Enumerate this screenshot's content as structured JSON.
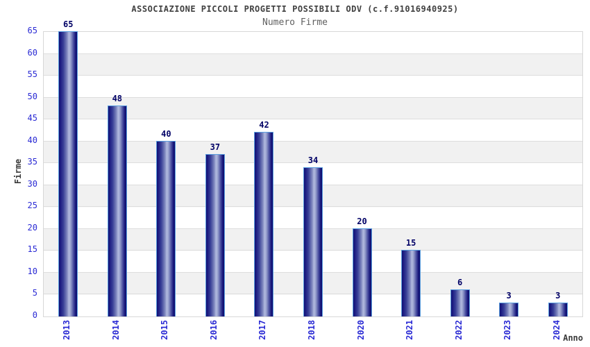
{
  "chart_data": {
    "type": "bar",
    "title": "ASSOCIAZIONE PICCOLI PROGETTI POSSIBILI ODV (c.f.91016940925)",
    "subtitle": "Numero Firme",
    "xlabel": "Anno",
    "ylabel": "Firme",
    "categories": [
      "2013",
      "2014",
      "2015",
      "2016",
      "2017",
      "2018",
      "2020",
      "2021",
      "2022",
      "2023",
      "2024"
    ],
    "values": [
      65,
      48,
      40,
      37,
      42,
      34,
      20,
      15,
      6,
      3,
      3
    ],
    "ylim": [
      0,
      65
    ],
    "y_ticks": [
      0,
      5,
      10,
      15,
      20,
      25,
      30,
      35,
      40,
      45,
      50,
      55,
      60,
      65
    ],
    "grid": true,
    "legend": false,
    "colors": {
      "bar_dark": "#10106e",
      "bar_light": "#b2badf",
      "bar_border": "#5a9fdf",
      "tick_label": "#2a2ad4",
      "value_label": "#000066",
      "stripe_band": "#f1f1f1",
      "gridline": "#dddddd",
      "title": "#404040",
      "subtitle": "#606060",
      "axis_label": "#3a3a3a"
    }
  }
}
